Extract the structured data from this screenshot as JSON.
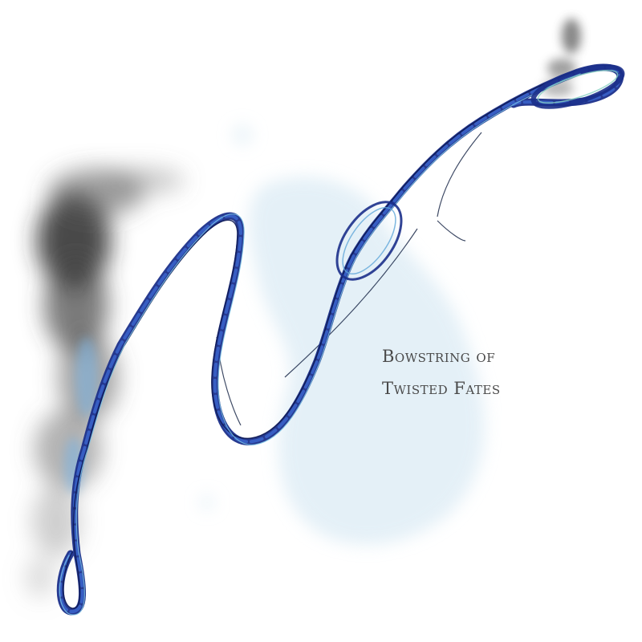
{
  "caption": {
    "line1": "Bowstring of",
    "line2": "Twisted Fates"
  }
}
